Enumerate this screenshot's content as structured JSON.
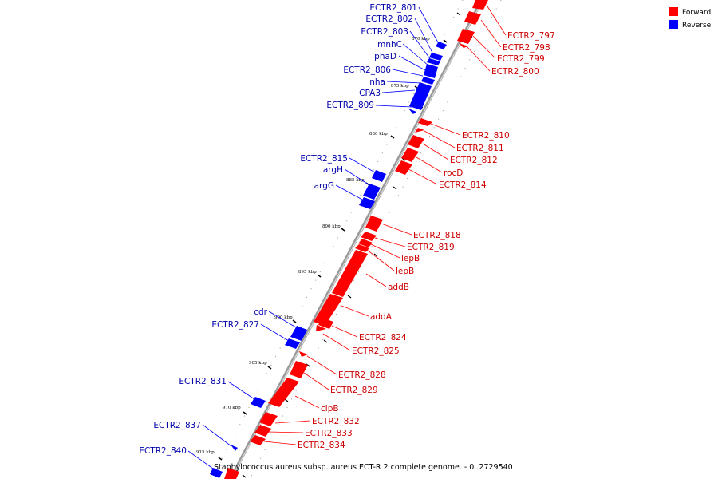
{
  "legend": {
    "items": [
      {
        "name": "Forward",
        "color": "#ff0000"
      },
      {
        "name": "Reverse",
        "color": "#0000ff"
      }
    ]
  },
  "caption": "Staphylococcus aureus subsp. aureus ECT-R 2 complete genome. - 0..2729540",
  "colors": {
    "forward": "#ff0000",
    "forward_label": "#cc0000",
    "reverse": "#0000ff",
    "reverse_label": "#0000aa",
    "axis": "#888888"
  },
  "axis": {
    "tick_labels": [
      "870 kbp",
      "875 kbp",
      "880 kbp",
      "885 kbp",
      "890 kbp",
      "895 kbp",
      "900 kbp",
      "905 kbp",
      "910 kbp",
      "915 kbp"
    ]
  },
  "genes": {
    "reverse": [
      {
        "name": "ECTR2_801"
      },
      {
        "name": "ECTR2_802"
      },
      {
        "name": "ECTR2_803"
      },
      {
        "name": "mnhC"
      },
      {
        "name": "phaD"
      },
      {
        "name": "ECTR2_806"
      },
      {
        "name": "nha"
      },
      {
        "name": "CPA3"
      },
      {
        "name": "ECTR2_809"
      },
      {
        "name": "ECTR2_815"
      },
      {
        "name": "argH"
      },
      {
        "name": "argG"
      },
      {
        "name": "cdr"
      },
      {
        "name": "ECTR2_827"
      },
      {
        "name": "ECTR2_831"
      },
      {
        "name": "ECTR2_837"
      },
      {
        "name": "ECTR2_840"
      }
    ],
    "forward": [
      {
        "name": "ECTR2_797"
      },
      {
        "name": "ECTR2_798"
      },
      {
        "name": "ECTR2_799"
      },
      {
        "name": "ECTR2_800"
      },
      {
        "name": "ECTR2_810"
      },
      {
        "name": "ECTR2_811"
      },
      {
        "name": "ECTR2_812"
      },
      {
        "name": "rocD"
      },
      {
        "name": "ECTR2_814"
      },
      {
        "name": "ECTR2_818"
      },
      {
        "name": "ECTR2_819"
      },
      {
        "name": "lepB"
      },
      {
        "name": "lepB"
      },
      {
        "name": "addB"
      },
      {
        "name": "addA"
      },
      {
        "name": "ECTR2_824"
      },
      {
        "name": "ECTR2_825"
      },
      {
        "name": "ECTR2_828"
      },
      {
        "name": "ECTR2_829"
      },
      {
        "name": "clpB"
      },
      {
        "name": "ECTR2_832"
      },
      {
        "name": "ECTR2_833"
      },
      {
        "name": "ECTR2_834"
      }
    ]
  }
}
